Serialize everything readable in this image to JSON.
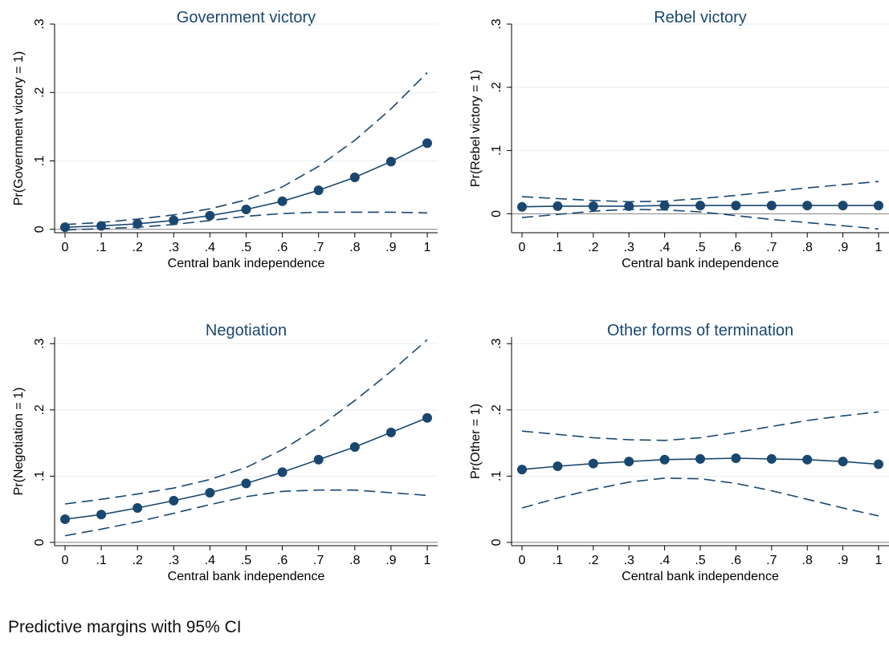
{
  "footnote": "Predictive margins with 95% CI",
  "colors": {
    "series": "#1a476f",
    "title": "#1a476f",
    "grid": "#e6eef3",
    "axis": "#000000"
  },
  "chart_data": [
    {
      "type": "line",
      "title": "Government victory",
      "xlabel": "Central bank independence",
      "ylabel": "Pr(Government victory = 1)",
      "x": [
        0,
        0.1,
        0.2,
        0.3,
        0.4,
        0.5,
        0.6,
        0.7,
        0.8,
        0.9,
        1
      ],
      "xticklabels": [
        "0",
        ".1",
        ".2",
        ".3",
        ".4",
        ".5",
        ".6",
        ".7",
        ".8",
        ".9",
        "1"
      ],
      "yticks": [
        0,
        0.1,
        0.2,
        0.3
      ],
      "yticklabels": [
        "0",
        ".1",
        ".2",
        ".3"
      ],
      "ylim": [
        -0.005,
        0.3
      ],
      "grid": true,
      "series": [
        {
          "role": "estimate",
          "values": [
            0.003,
            0.005,
            0.008,
            0.013,
            0.02,
            0.029,
            0.041,
            0.057,
            0.076,
            0.099,
            0.126
          ]
        },
        {
          "role": "ci_upper",
          "values": [
            0.007,
            0.01,
            0.015,
            0.021,
            0.03,
            0.043,
            0.062,
            0.092,
            0.13,
            0.176,
            0.229
          ]
        },
        {
          "role": "ci_lower",
          "values": [
            -0.001,
            0.001,
            0.003,
            0.007,
            0.013,
            0.019,
            0.023,
            0.025,
            0.025,
            0.025,
            0.024
          ]
        }
      ]
    },
    {
      "type": "line",
      "title": "Rebel victory",
      "xlabel": "Central bank independence",
      "ylabel": "Pr(Rebel victory = 1)",
      "x": [
        0,
        0.1,
        0.2,
        0.3,
        0.4,
        0.5,
        0.6,
        0.7,
        0.8,
        0.9,
        1
      ],
      "xticklabels": [
        "0",
        ".1",
        ".2",
        ".3",
        ".4",
        ".5",
        ".6",
        ".7",
        ".8",
        ".9",
        "1"
      ],
      "yticks": [
        0,
        0.1,
        0.2,
        0.3
      ],
      "yticklabels": [
        "0",
        ".1",
        ".2",
        ".3"
      ],
      "ylim": [
        -0.03,
        0.3
      ],
      "grid": true,
      "series": [
        {
          "role": "estimate",
          "values": [
            0.011,
            0.012,
            0.012,
            0.012,
            0.013,
            0.013,
            0.013,
            0.013,
            0.013,
            0.013,
            0.013
          ]
        },
        {
          "role": "ci_upper",
          "values": [
            0.027,
            0.024,
            0.021,
            0.019,
            0.02,
            0.024,
            0.029,
            0.035,
            0.041,
            0.046,
            0.051
          ]
        },
        {
          "role": "ci_lower",
          "values": [
            -0.006,
            -0.001,
            0.004,
            0.007,
            0.006,
            0.003,
            -0.003,
            -0.009,
            -0.014,
            -0.019,
            -0.024
          ]
        }
      ]
    },
    {
      "type": "line",
      "title": "Negotiation",
      "xlabel": "Central bank independence",
      "ylabel": "Pr(Negotiation = 1)",
      "x": [
        0,
        0.1,
        0.2,
        0.3,
        0.4,
        0.5,
        0.6,
        0.7,
        0.8,
        0.9,
        1
      ],
      "xticklabels": [
        "0",
        ".1",
        ".2",
        ".3",
        ".4",
        ".5",
        ".6",
        ".7",
        ".8",
        ".9",
        "1"
      ],
      "yticks": [
        0,
        0.1,
        0.2,
        0.3
      ],
      "yticklabels": [
        "0",
        ".1",
        ".2",
        ".3"
      ],
      "ylim": [
        -0.005,
        0.31
      ],
      "grid": true,
      "series": [
        {
          "role": "estimate",
          "values": [
            0.035,
            0.042,
            0.052,
            0.063,
            0.075,
            0.089,
            0.106,
            0.125,
            0.144,
            0.166,
            0.188
          ]
        },
        {
          "role": "ci_upper",
          "values": [
            0.058,
            0.065,
            0.073,
            0.082,
            0.095,
            0.113,
            0.14,
            0.174,
            0.214,
            0.258,
            0.306
          ]
        },
        {
          "role": "ci_lower",
          "values": [
            0.01,
            0.02,
            0.031,
            0.044,
            0.057,
            0.069,
            0.077,
            0.079,
            0.079,
            0.075,
            0.071
          ]
        }
      ]
    },
    {
      "type": "line",
      "title": "Other forms of termination",
      "xlabel": "Central bank independence",
      "ylabel": "Pr(Other = 1)",
      "x": [
        0,
        0.1,
        0.2,
        0.3,
        0.4,
        0.5,
        0.6,
        0.7,
        0.8,
        0.9,
        1
      ],
      "xticklabels": [
        "0",
        ".1",
        ".2",
        ".3",
        ".4",
        ".5",
        ".6",
        ".7",
        ".8",
        ".9",
        "1"
      ],
      "yticks": [
        0,
        0.1,
        0.2,
        0.3
      ],
      "yticklabels": [
        "0",
        ".1",
        ".2",
        ".3"
      ],
      "ylim": [
        -0.005,
        0.31
      ],
      "grid": true,
      "series": [
        {
          "role": "estimate",
          "values": [
            0.11,
            0.115,
            0.119,
            0.122,
            0.125,
            0.126,
            0.127,
            0.126,
            0.125,
            0.122,
            0.118
          ]
        },
        {
          "role": "ci_upper",
          "values": [
            0.168,
            0.163,
            0.158,
            0.155,
            0.154,
            0.158,
            0.166,
            0.175,
            0.184,
            0.191,
            0.197
          ]
        },
        {
          "role": "ci_lower",
          "values": [
            0.052,
            0.067,
            0.08,
            0.091,
            0.097,
            0.096,
            0.089,
            0.078,
            0.065,
            0.052,
            0.04
          ]
        }
      ]
    }
  ]
}
